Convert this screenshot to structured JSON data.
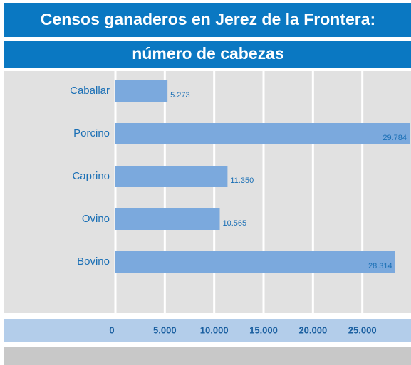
{
  "chart_data": {
    "type": "bar",
    "orientation": "horizontal",
    "title": [
      "Censos ganaderos en Jerez de la Frontera:",
      "número de cabezas"
    ],
    "categories": [
      "Caballar",
      "Porcino",
      "Caprino",
      "Ovino",
      "Bovino"
    ],
    "values": [
      5273,
      29784,
      11350,
      10565,
      28314
    ],
    "value_labels": [
      "5.273",
      "29.784",
      "11.350",
      "10.565",
      "28.314"
    ],
    "color": "#7ba9dd",
    "xlim": [
      0,
      30000
    ],
    "xticks": [
      0,
      {
        "value": 5000,
        "label": "5.000"
      },
      {
        "value": 10000,
        "label": "10.000"
      },
      {
        "value": 15000,
        "label": "15.000"
      },
      {
        "value": 20000,
        "label": "20.000"
      },
      {
        "value": 25000,
        "label": "25.000"
      }
    ],
    "grid": true
  }
}
